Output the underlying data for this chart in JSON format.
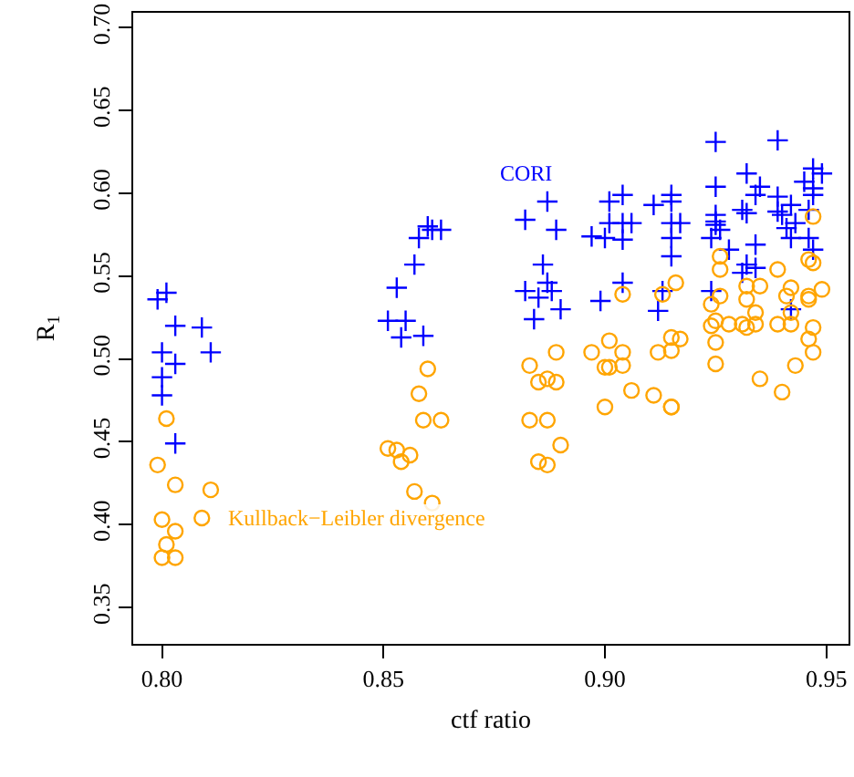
{
  "chart_data": {
    "type": "scatter",
    "xlabel": "ctf ratio",
    "ylabel": "R$_{1}$",
    "xlim": [
      0.7935,
      0.955
    ],
    "ylim": [
      0.328,
      0.709
    ],
    "xticks": [
      {
        "value": 0.8,
        "label": "0.80"
      },
      0.85,
      {
        "value": 0.9,
        "label": "0.90"
      },
      0.95
    ],
    "yticks": [
      0.35,
      {
        "value": 0.4,
        "label": "0.40"
      },
      0.45,
      {
        "value": 0.5,
        "label": "0.50"
      },
      0.55,
      {
        "value": 0.6,
        "label": "0.60"
      },
      0.65,
      {
        "value": 0.7,
        "label": "0.70"
      }
    ],
    "legend": false,
    "series": [
      {
        "name": "CORI",
        "color": "#0000ff",
        "marker": "cross",
        "x": [
          0.799,
          0.801,
          0.803,
          0.809,
          0.8,
          0.811,
          0.803,
          0.8,
          0.8,
          0.803,
          0.86,
          0.861,
          0.863,
          0.858,
          0.857,
          0.853,
          0.851,
          0.855,
          0.854,
          0.859,
          0.887,
          0.882,
          0.889,
          0.897,
          0.886,
          0.887,
          0.882,
          0.885,
          0.888,
          0.89,
          0.884,
          0.925,
          0.939,
          0.947,
          0.949,
          0.932,
          0.901,
          0.904,
          0.911,
          0.915,
          0.915,
          0.925,
          0.935,
          0.934,
          0.939,
          0.945,
          0.947,
          0.947,
          0.942,
          0.946,
          0.931,
          0.932,
          0.939,
          0.94,
          0.925,
          0.925,
          0.925,
          0.901,
          0.904,
          0.906,
          0.915,
          0.917,
          0.943,
          0.941,
          0.926,
          0.9,
          0.904,
          0.915,
          0.924,
          0.942,
          0.946,
          0.934,
          0.915,
          0.928,
          0.947,
          0.932,
          0.934,
          0.931,
          0.904,
          0.913,
          0.924,
          0.899,
          0.912,
          0.942
        ],
        "values": [
          0.536,
          0.54,
          0.52,
          0.519,
          0.504,
          0.504,
          0.497,
          0.489,
          0.478,
          0.449,
          0.58,
          0.578,
          0.578,
          0.573,
          0.557,
          0.543,
          0.523,
          0.523,
          0.513,
          0.514,
          0.595,
          0.584,
          0.578,
          0.574,
          0.557,
          0.546,
          0.541,
          0.537,
          0.541,
          0.53,
          0.524,
          0.631,
          0.632,
          0.615,
          0.612,
          0.612,
          0.595,
          0.599,
          0.593,
          0.599,
          0.595,
          0.604,
          0.604,
          0.599,
          0.598,
          0.607,
          0.603,
          0.599,
          0.593,
          0.59,
          0.59,
          0.588,
          0.589,
          0.587,
          0.587,
          0.583,
          0.581,
          0.582,
          0.582,
          0.582,
          0.582,
          0.582,
          0.582,
          0.579,
          0.578,
          0.573,
          0.572,
          0.573,
          0.573,
          0.573,
          0.573,
          0.569,
          0.562,
          0.566,
          0.566,
          0.557,
          0.555,
          0.552,
          0.546,
          0.541,
          0.541,
          0.535,
          0.529,
          0.53
        ]
      },
      {
        "name": "Kullback−Leibler divergence",
        "color": "#ffa500",
        "marker": "circle",
        "x": [
          0.801,
          0.799,
          0.803,
          0.811,
          0.8,
          0.809,
          0.803,
          0.801,
          0.8,
          0.803,
          0.86,
          0.858,
          0.859,
          0.863,
          0.851,
          0.853,
          0.856,
          0.854,
          0.857,
          0.861,
          0.889,
          0.883,
          0.885,
          0.887,
          0.889,
          0.883,
          0.887,
          0.89,
          0.885,
          0.887,
          0.947,
          0.926,
          0.946,
          0.947,
          0.926,
          0.939,
          0.916,
          0.904,
          0.913,
          0.932,
          0.935,
          0.942,
          0.949,
          0.926,
          0.932,
          0.941,
          0.946,
          0.946,
          0.924,
          0.934,
          0.942,
          0.925,
          0.928,
          0.931,
          0.934,
          0.939,
          0.942,
          0.924,
          0.932,
          0.947,
          0.946,
          0.901,
          0.915,
          0.917,
          0.925,
          0.897,
          0.904,
          0.912,
          0.915,
          0.947,
          0.9,
          0.901,
          0.904,
          0.925,
          0.943,
          0.935,
          0.906,
          0.911,
          0.94,
          0.9,
          0.915,
          0.915
        ],
        "values": [
          0.464,
          0.436,
          0.424,
          0.421,
          0.403,
          0.404,
          0.396,
          0.388,
          0.38,
          0.38,
          0.494,
          0.479,
          0.463,
          0.463,
          0.446,
          0.445,
          0.442,
          0.438,
          0.42,
          0.413,
          0.504,
          0.496,
          0.486,
          0.488,
          0.486,
          0.463,
          0.463,
          0.448,
          0.438,
          0.436,
          0.586,
          0.562,
          0.56,
          0.558,
          0.554,
          0.554,
          0.546,
          0.539,
          0.539,
          0.544,
          0.544,
          0.543,
          0.542,
          0.538,
          0.536,
          0.538,
          0.538,
          0.536,
          0.533,
          0.528,
          0.528,
          0.523,
          0.521,
          0.521,
          0.521,
          0.521,
          0.521,
          0.52,
          0.519,
          0.519,
          0.512,
          0.511,
          0.513,
          0.512,
          0.51,
          0.504,
          0.504,
          0.504,
          0.505,
          0.504,
          0.495,
          0.495,
          0.496,
          0.497,
          0.496,
          0.488,
          0.481,
          0.478,
          0.48,
          0.471,
          0.471,
          0.471
        ]
      }
    ]
  }
}
